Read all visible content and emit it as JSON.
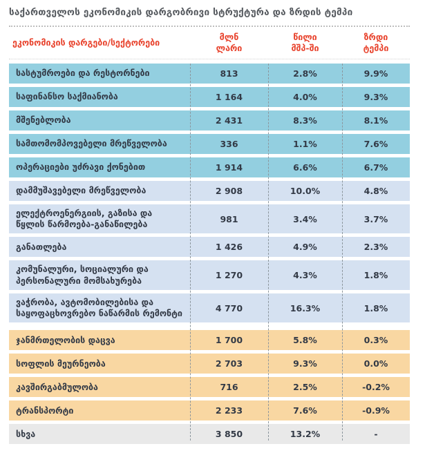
{
  "title": "საქართველოს ეკონომიკის დარგობრივი სტრუქტურა და ზრდის ტემპი",
  "table": {
    "sector_header": "ეკონომიკის დარგები/სექტორები",
    "col_headers": [
      "მლნ\nლარი",
      "წილი\nმშპ-ში",
      "ზრდი\nტემპი"
    ],
    "rows": [
      {
        "name": "სასტუმროები და რესტორნები",
        "mln": "813",
        "share": "2.8%",
        "growth": "9.9%",
        "variant": "blue_dark"
      },
      {
        "name": "საფინანსო საქმიანობა",
        "mln": "1 164",
        "share": "4.0%",
        "growth": "9.3%",
        "variant": "blue_dark"
      },
      {
        "name": "მშენებლობა",
        "mln": "2 431",
        "share": "8.3%",
        "growth": "8.1%",
        "variant": "blue_dark"
      },
      {
        "name": "სამთომომპოვებელი მრეწველობა",
        "mln": "336",
        "share": "1.1%",
        "growth": "7.6%",
        "variant": "blue_dark"
      },
      {
        "name": "ოპერაციები უძრავი ქონებით",
        "mln": "1 914",
        "share": "6.6%",
        "growth": "6.7%",
        "variant": "blue_dark"
      },
      {
        "name": "დამმუშავებელი მრეწველობა",
        "mln": "2 908",
        "share": "10.0%",
        "growth": "4.8%",
        "variant": "blue_light"
      },
      {
        "name": "ელექტროენერგიის, გაზისა და\nწყლის წარმოება-განაწილება",
        "mln": "981",
        "share": "3.4%",
        "growth": "3.7%",
        "variant": "blue_light"
      },
      {
        "name": "განათლება",
        "mln": "1 426",
        "share": "4.9%",
        "growth": "2.3%",
        "variant": "blue_light"
      },
      {
        "name": "კომუნალური, სოციალური და\nპერსონალური მომსახურება",
        "mln": "1 270",
        "share": "4.3%",
        "growth": "1.8%",
        "variant": "blue_light"
      },
      {
        "name": "ვაჭრობა, ავტომობილებისა და\nსაყოფაცხოვრებო ნაწარმის რემონტი",
        "mln": "4 770",
        "share": "16.3%",
        "growth": "1.8%",
        "variant": "blue_light"
      },
      {
        "name": "ჯანმრთელობის დაცვა",
        "mln": "1 700",
        "share": "5.8%",
        "growth": "0.3%",
        "variant": "orange"
      },
      {
        "name": "სოფლის მეურნეობა",
        "mln": "2 703",
        "share": "9.3%",
        "growth": "0.0%",
        "variant": "orange"
      },
      {
        "name": "კავშირგაბმულობა",
        "mln": "716",
        "share": "2.5%",
        "growth": "-0.2%",
        "variant": "orange"
      },
      {
        "name": "ტრანსპორტი",
        "mln": "2 233",
        "share": "7.6%",
        "growth": "-0.9%",
        "variant": "orange"
      },
      {
        "name": "სხვა",
        "mln": "3 850",
        "share": "13.2%",
        "growth": "-",
        "variant": "gray"
      }
    ]
  },
  "colors": {
    "blue_dark": "#93cfe0",
    "blue_light": "#d5e1f1",
    "orange": "#f9d7a2",
    "gray": "#e9e9e9",
    "header_red": "#e8432d",
    "text_dark": "#333a46",
    "title_gray": "#55595e"
  },
  "chart_data": {
    "type": "table",
    "title": "საქართველოს ეკონომიკის დარგობრივი სტრუქტურა და ზრდის ტემპი",
    "columns": [
      "ეკონომიკის დარგები/სექტორები",
      "მლნ ლარი",
      "წილი მშპ-ში",
      "ზრდი ტემპი"
    ],
    "rows": [
      [
        "სასტუმროები და რესტორნები",
        813,
        "2.8%",
        "9.9%"
      ],
      [
        "საფინანსო საქმიანობა",
        1164,
        "4.0%",
        "9.3%"
      ],
      [
        "მშენებლობა",
        2431,
        "8.3%",
        "8.1%"
      ],
      [
        "სამთომომპოვებელი მრეწველობა",
        336,
        "1.1%",
        "7.6%"
      ],
      [
        "ოპერაციები უძრავი ქონებით",
        1914,
        "6.6%",
        "6.7%"
      ],
      [
        "დამმუშავებელი მრეწველობა",
        2908,
        "10.0%",
        "4.8%"
      ],
      [
        "ელექტროენერგიის, გაზისა და წყლის წარმოება-განაწილება",
        981,
        "3.4%",
        "3.7%"
      ],
      [
        "განათლება",
        1426,
        "4.9%",
        "2.3%"
      ],
      [
        "კომუნალური, სოციალური და პერსონალური მომსახურება",
        1270,
        "4.3%",
        "1.8%"
      ],
      [
        "ვაჭრობა, ავტომობილებისა და საყოფაცხოვრებო ნაწარმის რემონტი",
        4770,
        "16.3%",
        "1.8%"
      ],
      [
        "ჯანმრთელობის დაცვა",
        1700,
        "5.8%",
        "0.3%"
      ],
      [
        "სოფლის მეურნეობა",
        2703,
        "9.3%",
        "0.0%"
      ],
      [
        "კავშირგაბმულობა",
        716,
        "2.5%",
        "-0.2%"
      ],
      [
        "ტრანსპორტი",
        2233,
        "7.6%",
        "-0.9%"
      ],
      [
        "სხვა",
        3850,
        "13.2%",
        "-"
      ]
    ]
  }
}
